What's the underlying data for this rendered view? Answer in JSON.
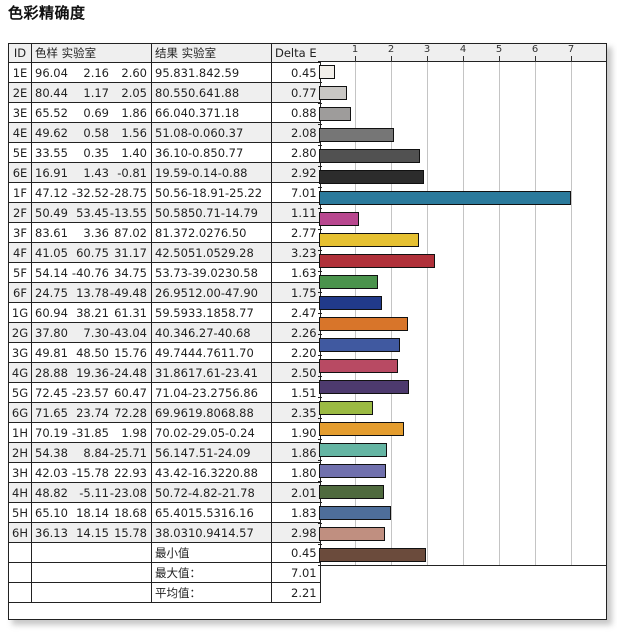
{
  "title": "色彩精确度",
  "table": {
    "headers": {
      "id": "ID",
      "swatch": "色样 实验室",
      "result": "结果 实验室",
      "delta": "Delta E"
    },
    "rows": [
      {
        "id": "1E",
        "lab": [
          "96.04",
          "2.16",
          "2.60"
        ],
        "res": [
          "95.83",
          "1.84",
          "2.59"
        ],
        "de": "0.45",
        "color": "#f2efea"
      },
      {
        "id": "2E",
        "lab": [
          "80.44",
          "1.17",
          "2.05"
        ],
        "res": [
          "80.55",
          "0.64",
          "1.88"
        ],
        "de": "0.77",
        "color": "#c9c7c4"
      },
      {
        "id": "3E",
        "lab": [
          "65.52",
          "0.69",
          "1.86"
        ],
        "res": [
          "66.04",
          "0.37",
          "1.18"
        ],
        "de": "0.88",
        "color": "#9e9c9b"
      },
      {
        "id": "4E",
        "lab": [
          "49.62",
          "0.58",
          "1.56"
        ],
        "res": [
          "51.08",
          "-0.06",
          "0.37"
        ],
        "de": "2.08",
        "color": "#767676"
      },
      {
        "id": "5E",
        "lab": [
          "33.55",
          "0.35",
          "1.40"
        ],
        "res": [
          "36.10",
          "-0.85",
          "0.77"
        ],
        "de": "2.80",
        "color": "#515151"
      },
      {
        "id": "6E",
        "lab": [
          "16.91",
          "1.43",
          "-0.81"
        ],
        "res": [
          "19.59",
          "-0.14",
          "-0.88"
        ],
        "de": "2.92",
        "color": "#2c2c2c"
      },
      {
        "id": "1F",
        "lab": [
          "47.12",
          "-32.52",
          "-28.75"
        ],
        "res": [
          "50.56",
          "-18.91",
          "-25.22"
        ],
        "de": "7.01",
        "color": "#2b7a9c"
      },
      {
        "id": "2F",
        "lab": [
          "50.49",
          "53.45",
          "-13.55"
        ],
        "res": [
          "50.58",
          "50.71",
          "-14.79"
        ],
        "de": "1.11",
        "color": "#b8478f"
      },
      {
        "id": "3F",
        "lab": [
          "83.61",
          "3.36",
          "87.02"
        ],
        "res": [
          "81.37",
          "2.02",
          "76.50"
        ],
        "de": "2.77",
        "color": "#e6c132"
      },
      {
        "id": "4F",
        "lab": [
          "41.05",
          "60.75",
          "31.17"
        ],
        "res": [
          "42.50",
          "51.05",
          "29.28"
        ],
        "de": "3.23",
        "color": "#b0313a"
      },
      {
        "id": "5F",
        "lab": [
          "54.14",
          "-40.76",
          "34.75"
        ],
        "res": [
          "53.73",
          "-39.02",
          "30.58"
        ],
        "de": "1.63",
        "color": "#4a934c"
      },
      {
        "id": "6F",
        "lab": [
          "24.75",
          "13.78",
          "-49.48"
        ],
        "res": [
          "26.95",
          "12.00",
          "-47.90"
        ],
        "de": "1.75",
        "color": "#213a8a"
      },
      {
        "id": "1G",
        "lab": [
          "60.94",
          "38.21",
          "61.31"
        ],
        "res": [
          "59.59",
          "33.18",
          "58.77"
        ],
        "de": "2.47",
        "color": "#d8752a"
      },
      {
        "id": "2G",
        "lab": [
          "37.80",
          "7.30",
          "-43.04"
        ],
        "res": [
          "40.34",
          "6.27",
          "-40.68"
        ],
        "de": "2.26",
        "color": "#4059a0"
      },
      {
        "id": "3G",
        "lab": [
          "49.81",
          "48.50",
          "15.76"
        ],
        "res": [
          "49.74",
          "44.76",
          "11.70"
        ],
        "de": "2.20",
        "color": "#b84a63"
      },
      {
        "id": "4G",
        "lab": [
          "28.88",
          "19.36",
          "-24.48"
        ],
        "res": [
          "31.86",
          "17.61",
          "-23.41"
        ],
        "de": "2.50",
        "color": "#4d3a6e"
      },
      {
        "id": "5G",
        "lab": [
          "72.45",
          "-23.57",
          "60.47"
        ],
        "res": [
          "71.04",
          "-23.27",
          "56.86"
        ],
        "de": "1.51",
        "color": "#9bba43"
      },
      {
        "id": "6G",
        "lab": [
          "71.65",
          "23.74",
          "72.28"
        ],
        "res": [
          "69.96",
          "19.80",
          "68.88"
        ],
        "de": "2.35",
        "color": "#e49d2f"
      },
      {
        "id": "1H",
        "lab": [
          "70.19",
          "-31.85",
          "1.98"
        ],
        "res": [
          "70.02",
          "-29.05",
          "-0.24"
        ],
        "de": "1.90",
        "color": "#65b5a3"
      },
      {
        "id": "2H",
        "lab": [
          "54.38",
          "8.84",
          "-25.71"
        ],
        "res": [
          "56.14",
          "7.51",
          "-24.09"
        ],
        "de": "1.86",
        "color": "#7070ad"
      },
      {
        "id": "3H",
        "lab": [
          "42.03",
          "-15.78",
          "22.93"
        ],
        "res": [
          "43.42",
          "-16.32",
          "20.88"
        ],
        "de": "1.80",
        "color": "#4f6a3e"
      },
      {
        "id": "4H",
        "lab": [
          "48.82",
          "-5.11",
          "-23.08"
        ],
        "res": [
          "50.72",
          "-4.82",
          "-21.78"
        ],
        "de": "2.01",
        "color": "#4e6e9a"
      },
      {
        "id": "5H",
        "lab": [
          "65.10",
          "18.14",
          "18.68"
        ],
        "res": [
          "65.40",
          "15.53",
          "16.16"
        ],
        "de": "1.83",
        "color": "#c08f80"
      },
      {
        "id": "6H",
        "lab": [
          "36.13",
          "14.15",
          "15.78"
        ],
        "res": [
          "38.03",
          "10.94",
          "14.57"
        ],
        "de": "2.98",
        "color": "#6b4b3c"
      }
    ],
    "summary": [
      {
        "label": "最小值",
        "value": "0.45"
      },
      {
        "label": "最大值：",
        "value": "7.01"
      },
      {
        "label": "平均值：",
        "value": "2.21"
      }
    ]
  },
  "chart_data": {
    "type": "bar",
    "orientation": "horizontal",
    "title": "色彩精确度",
    "xlabel": "Delta E",
    "ylabel": "ID",
    "xlim": [
      0,
      7.9
    ],
    "x_ticks": [
      1,
      2,
      3,
      4,
      5,
      6,
      7
    ],
    "grid": true,
    "legend": "none",
    "categories": [
      "1E",
      "2E",
      "3E",
      "4E",
      "5E",
      "6E",
      "1F",
      "2F",
      "3F",
      "4F",
      "5F",
      "6F",
      "1G",
      "2G",
      "3G",
      "4G",
      "5G",
      "6G",
      "1H",
      "2H",
      "3H",
      "4H",
      "5H",
      "6H"
    ],
    "values": [
      0.45,
      0.77,
      0.88,
      2.08,
      2.8,
      2.92,
      7.01,
      1.11,
      2.77,
      3.23,
      1.63,
      1.75,
      2.47,
      2.26,
      2.2,
      2.5,
      1.51,
      2.35,
      1.9,
      1.86,
      1.8,
      2.01,
      1.83,
      2.98
    ],
    "summary": {
      "min": 0.45,
      "max": 7.01,
      "mean": 2.21
    }
  }
}
